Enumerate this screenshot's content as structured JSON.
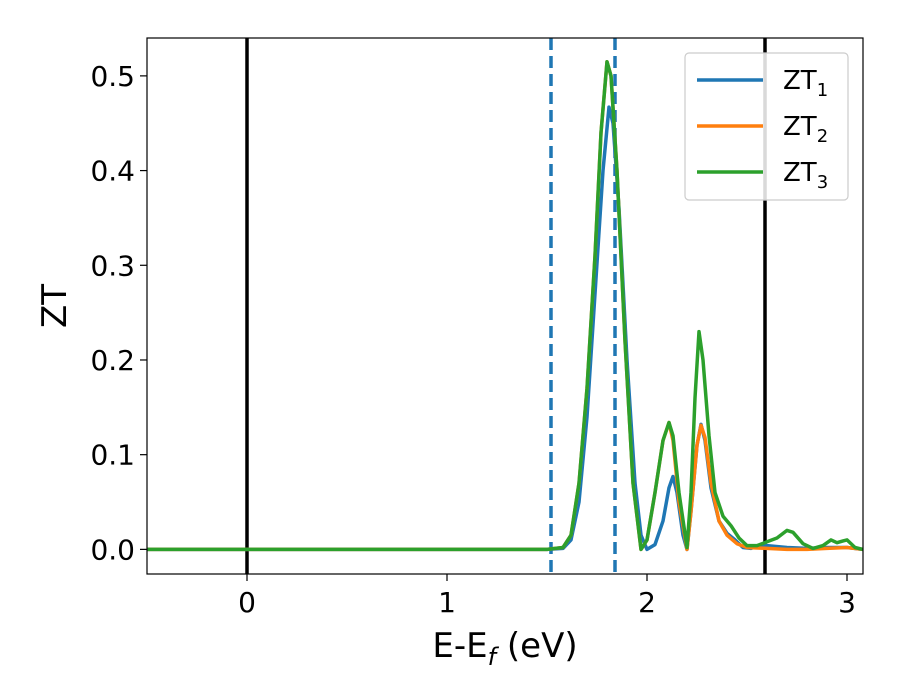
{
  "chart_data": {
    "type": "line",
    "xlabel": {
      "main": "E-E",
      "sub": "f",
      "unit": " (eV)"
    },
    "ylabel": "ZT",
    "xlim": [
      -0.5,
      3.08
    ],
    "ylim": [
      -0.026,
      0.54
    ],
    "xticks": [
      0,
      1,
      2,
      3
    ],
    "xtick_labels": [
      "0",
      "1",
      "2",
      "3"
    ],
    "yticks": [
      0.0,
      0.1,
      0.2,
      0.3,
      0.4,
      0.5
    ],
    "ytick_labels": [
      "0.0",
      "0.1",
      "0.2",
      "0.3",
      "0.4",
      "0.5"
    ],
    "grid": false,
    "legend_position": "top-right",
    "vlines": [
      {
        "x": 0.0,
        "style": "solid",
        "color": "#000000"
      },
      {
        "x": 2.59,
        "style": "solid",
        "color": "#000000"
      },
      {
        "x": 1.52,
        "style": "dashed",
        "color": "#1f77b4"
      },
      {
        "x": 1.84,
        "style": "dashed",
        "color": "#1f77b4"
      }
    ],
    "series": [
      {
        "name": "ZT",
        "sub": "1",
        "color": "#1f77b4",
        "points": [
          [
            -0.5,
            0.0
          ],
          [
            1.5,
            0.0
          ],
          [
            1.58,
            0.001
          ],
          [
            1.62,
            0.01
          ],
          [
            1.66,
            0.05
          ],
          [
            1.7,
            0.14
          ],
          [
            1.74,
            0.27
          ],
          [
            1.78,
            0.4
          ],
          [
            1.81,
            0.467
          ],
          [
            1.83,
            0.45
          ],
          [
            1.86,
            0.36
          ],
          [
            1.9,
            0.2
          ],
          [
            1.94,
            0.07
          ],
          [
            1.97,
            0.015
          ],
          [
            2.0,
            0.0
          ],
          [
            2.04,
            0.005
          ],
          [
            2.08,
            0.03
          ],
          [
            2.11,
            0.065
          ],
          [
            2.13,
            0.077
          ],
          [
            2.15,
            0.06
          ],
          [
            2.18,
            0.015
          ],
          [
            2.2,
            0.0
          ],
          [
            2.22,
            0.04
          ],
          [
            2.25,
            0.11
          ],
          [
            2.27,
            0.132
          ],
          [
            2.29,
            0.115
          ],
          [
            2.32,
            0.065
          ],
          [
            2.36,
            0.03
          ],
          [
            2.4,
            0.017
          ],
          [
            2.44,
            0.01
          ],
          [
            2.48,
            0.002
          ],
          [
            2.52,
            0.001
          ],
          [
            2.56,
            0.004
          ],
          [
            2.6,
            0.004
          ],
          [
            2.7,
            0.002
          ],
          [
            2.8,
            0.001
          ],
          [
            2.9,
            0.002
          ],
          [
            3.0,
            0.002
          ],
          [
            3.08,
            0.0
          ]
        ]
      },
      {
        "name": "ZT",
        "sub": "2",
        "color": "#ff7f0e",
        "points": [
          [
            -0.5,
            0.0
          ],
          [
            1.5,
            0.0
          ],
          [
            1.58,
            0.002
          ],
          [
            1.62,
            0.015
          ],
          [
            1.66,
            0.07
          ],
          [
            1.7,
            0.17
          ],
          [
            1.74,
            0.31
          ],
          [
            1.77,
            0.44
          ],
          [
            1.8,
            0.515
          ],
          [
            1.82,
            0.5
          ],
          [
            1.85,
            0.4
          ],
          [
            1.89,
            0.22
          ],
          [
            1.93,
            0.07
          ],
          [
            1.97,
            0.0
          ],
          [
            2.0,
            0.01
          ],
          [
            2.04,
            0.06
          ],
          [
            2.08,
            0.115
          ],
          [
            2.11,
            0.134
          ],
          [
            2.13,
            0.115
          ],
          [
            2.16,
            0.05
          ],
          [
            2.2,
            0.0
          ],
          [
            2.22,
            0.04
          ],
          [
            2.25,
            0.11
          ],
          [
            2.27,
            0.131
          ],
          [
            2.29,
            0.118
          ],
          [
            2.32,
            0.07
          ],
          [
            2.36,
            0.03
          ],
          [
            2.4,
            0.015
          ],
          [
            2.45,
            0.006
          ],
          [
            2.5,
            0.002
          ],
          [
            2.6,
            0.001
          ],
          [
            2.7,
            0.0
          ],
          [
            2.8,
            0.0
          ],
          [
            2.9,
            0.001
          ],
          [
            3.0,
            0.002
          ],
          [
            3.08,
            0.0
          ]
        ]
      },
      {
        "name": "ZT",
        "sub": "3",
        "color": "#2ca02c",
        "points": [
          [
            -0.5,
            0.0
          ],
          [
            1.5,
            0.0
          ],
          [
            1.58,
            0.002
          ],
          [
            1.62,
            0.015
          ],
          [
            1.66,
            0.07
          ],
          [
            1.7,
            0.17
          ],
          [
            1.74,
            0.31
          ],
          [
            1.77,
            0.44
          ],
          [
            1.8,
            0.515
          ],
          [
            1.82,
            0.5
          ],
          [
            1.85,
            0.4
          ],
          [
            1.89,
            0.22
          ],
          [
            1.93,
            0.07
          ],
          [
            1.97,
            0.0
          ],
          [
            2.0,
            0.01
          ],
          [
            2.04,
            0.06
          ],
          [
            2.08,
            0.115
          ],
          [
            2.11,
            0.134
          ],
          [
            2.13,
            0.12
          ],
          [
            2.16,
            0.06
          ],
          [
            2.2,
            0.002
          ],
          [
            2.22,
            0.06
          ],
          [
            2.24,
            0.16
          ],
          [
            2.26,
            0.23
          ],
          [
            2.28,
            0.2
          ],
          [
            2.31,
            0.12
          ],
          [
            2.34,
            0.06
          ],
          [
            2.38,
            0.035
          ],
          [
            2.42,
            0.025
          ],
          [
            2.46,
            0.012
          ],
          [
            2.5,
            0.004
          ],
          [
            2.55,
            0.004
          ],
          [
            2.6,
            0.008
          ],
          [
            2.65,
            0.012
          ],
          [
            2.7,
            0.02
          ],
          [
            2.73,
            0.018
          ],
          [
            2.78,
            0.006
          ],
          [
            2.83,
            0.001
          ],
          [
            2.88,
            0.004
          ],
          [
            2.92,
            0.01
          ],
          [
            2.95,
            0.007
          ],
          [
            2.98,
            0.009
          ],
          [
            3.0,
            0.01
          ],
          [
            3.04,
            0.002
          ],
          [
            3.08,
            0.0
          ]
        ]
      }
    ]
  }
}
